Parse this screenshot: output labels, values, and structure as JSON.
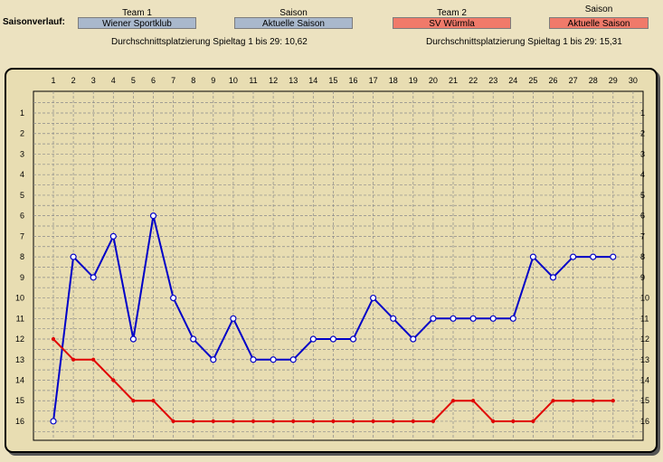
{
  "header": {
    "label": "Saisonverlauf:",
    "team1": {
      "heading": "Team 1",
      "value": "Wiener Sportklub"
    },
    "season1": {
      "heading": "Saison",
      "value": "Aktuelle Saison"
    },
    "team2": {
      "heading": "Team 2",
      "value": "SV Würmla"
    },
    "season2": {
      "heading": "Saison",
      "value": "Aktuelle Saison"
    },
    "avg1": "Durchschnittsplatzierung Spieltag 1 bis 29: 10,62",
    "avg2": "Durchschnittsplatzierung Spieltag 1 bis 29: 15,31"
  },
  "colors": {
    "team1": "#0000c8",
    "team2": "#e00000",
    "background": "#ece2c0",
    "plot": "#e8ddb2"
  },
  "chart_data": {
    "type": "line",
    "x_ticks": [
      1,
      2,
      3,
      4,
      5,
      6,
      7,
      8,
      9,
      10,
      11,
      12,
      13,
      14,
      15,
      16,
      17,
      18,
      19,
      20,
      21,
      22,
      23,
      24,
      25,
      26,
      27,
      28,
      29,
      30
    ],
    "y_ticks": [
      1,
      2,
      3,
      4,
      5,
      6,
      7,
      8,
      9,
      10,
      11,
      12,
      13,
      14,
      15,
      16
    ],
    "xlim": [
      1,
      30
    ],
    "ylim": [
      0,
      17
    ],
    "y_inverted": true,
    "grid": true,
    "x": [
      1,
      2,
      3,
      4,
      5,
      6,
      7,
      8,
      9,
      10,
      11,
      12,
      13,
      14,
      15,
      16,
      17,
      18,
      19,
      20,
      21,
      22,
      23,
      24,
      25,
      26,
      27,
      28,
      29
    ],
    "series": [
      {
        "name": "Wiener Sportklub",
        "color": "#0000c8",
        "values": [
          16,
          8,
          9,
          7,
          12,
          6,
          10,
          12,
          13,
          11,
          13,
          13,
          13,
          12,
          12,
          12,
          10,
          11,
          12,
          11,
          11,
          11,
          11,
          11,
          8,
          9,
          8,
          8,
          8
        ]
      },
      {
        "name": "SV Würmla",
        "color": "#e00000",
        "values": [
          12,
          13,
          13,
          14,
          15,
          15,
          16,
          16,
          16,
          16,
          16,
          16,
          16,
          16,
          16,
          16,
          16,
          16,
          16,
          16,
          15,
          15,
          16,
          16,
          16,
          15,
          15,
          15,
          15
        ]
      }
    ]
  }
}
